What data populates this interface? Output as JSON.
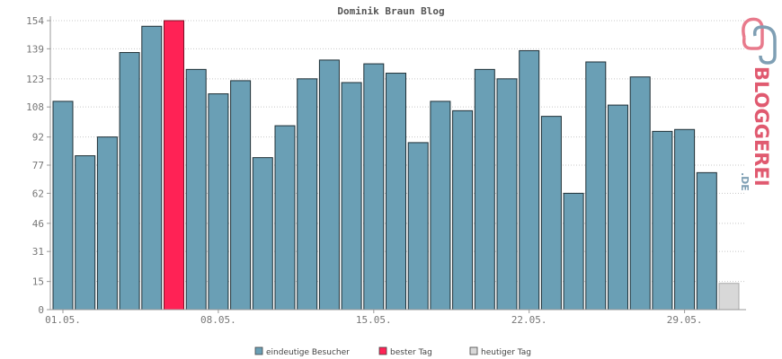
{
  "chart_data": {
    "type": "bar",
    "title": "Dominik Braun Blog",
    "xlabel": "",
    "ylabel": "",
    "ylim": [
      0,
      154
    ],
    "yticks": [
      0,
      15,
      31,
      46,
      62,
      77,
      92,
      108,
      123,
      139,
      154
    ],
    "xtick_labels": [
      {
        "label": "01.05.",
        "index": 0
      },
      {
        "label": "08.05.",
        "index": 7
      },
      {
        "label": "15.05.",
        "index": 14
      },
      {
        "label": "22.05.",
        "index": 21
      },
      {
        "label": "29.05.",
        "index": 28
      }
    ],
    "grid": true,
    "legend_position": "bottom",
    "series": [
      {
        "name": "eindeutige Besucher",
        "color": "#6a9fb5"
      },
      {
        "name": "bester Tag",
        "color": "#ff2255"
      },
      {
        "name": "heutiger Tag",
        "color": "#d8d8d8"
      }
    ],
    "values": [
      111,
      82,
      92,
      137,
      151,
      154,
      128,
      115,
      122,
      81,
      98,
      123,
      133,
      121,
      131,
      126,
      89,
      111,
      106,
      128,
      123,
      138,
      103,
      62,
      132,
      109,
      124,
      95,
      96,
      73,
      14
    ],
    "best_day_index": 5,
    "today_index": 30
  },
  "logo": {
    "text": "BLOGGEREI",
    "suffix": ".DE"
  }
}
